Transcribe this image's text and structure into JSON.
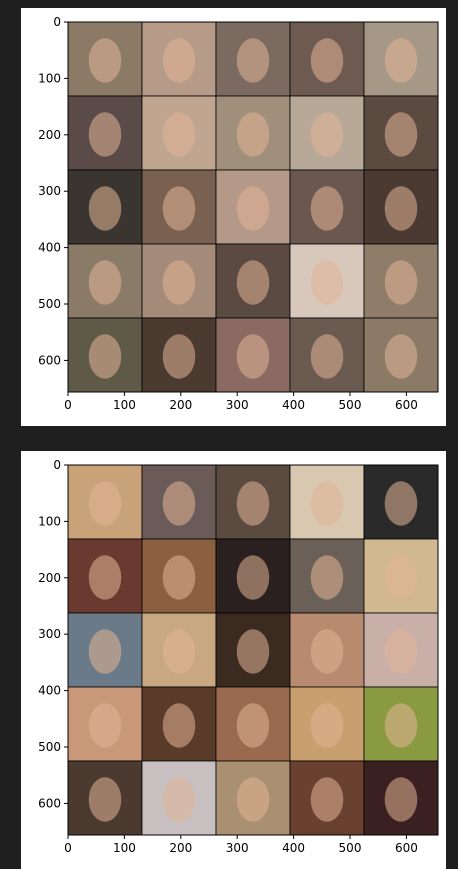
{
  "figures": [
    {
      "id": "generated",
      "xticks": [
        "0",
        "100",
        "200",
        "300",
        "400",
        "500",
        "600"
      ],
      "yticks": [
        "0",
        "100",
        "200",
        "300",
        "400",
        "500",
        "600"
      ],
      "tiles": [
        [
          "#8b7a66",
          "#b59b88",
          "#7a6a60",
          "#6d5a50",
          "#a69886"
        ],
        [
          "#5a4a48",
          "#c0a590",
          "#a08f7a",
          "#b8a898",
          "#5a4a40"
        ],
        [
          "#3a3530",
          "#7a6050",
          "#b49888",
          "#6a5850",
          "#4a3a32"
        ],
        [
          "#8a7a68",
          "#a48a78",
          "#5a4a42",
          "#d8c8bc",
          "#8f7d6a"
        ],
        [
          "#5f5a48",
          "#4a3a30",
          "#8a6a62",
          "#6a5a50",
          "#8a7a66"
        ]
      ]
    },
    {
      "id": "real",
      "xticks": [
        "0",
        "100",
        "200",
        "300",
        "400",
        "500",
        "600"
      ],
      "yticks": [
        "0",
        "100",
        "200",
        "300",
        "400",
        "500",
        "600"
      ],
      "tiles": [
        [
          "#c8a37a",
          "#6a5a58",
          "#5a4a40",
          "#d8c8b0",
          "#2a2a2a"
        ],
        [
          "#6a3a30",
          "#8a6040",
          "#2a2020",
          "#6a6058",
          "#d0b890"
        ],
        [
          "#6a7a88",
          "#c8a880",
          "#3a2a20",
          "#b88a70",
          "#c8b0a8"
        ],
        [
          "#c89878",
          "#5a3a28",
          "#9a6a50",
          "#c8a070",
          "#8a9a40"
        ],
        [
          "#4a3a30",
          "#c8c0c0",
          "#a89070",
          "#6a4030",
          "#3a2020"
        ]
      ]
    }
  ]
}
